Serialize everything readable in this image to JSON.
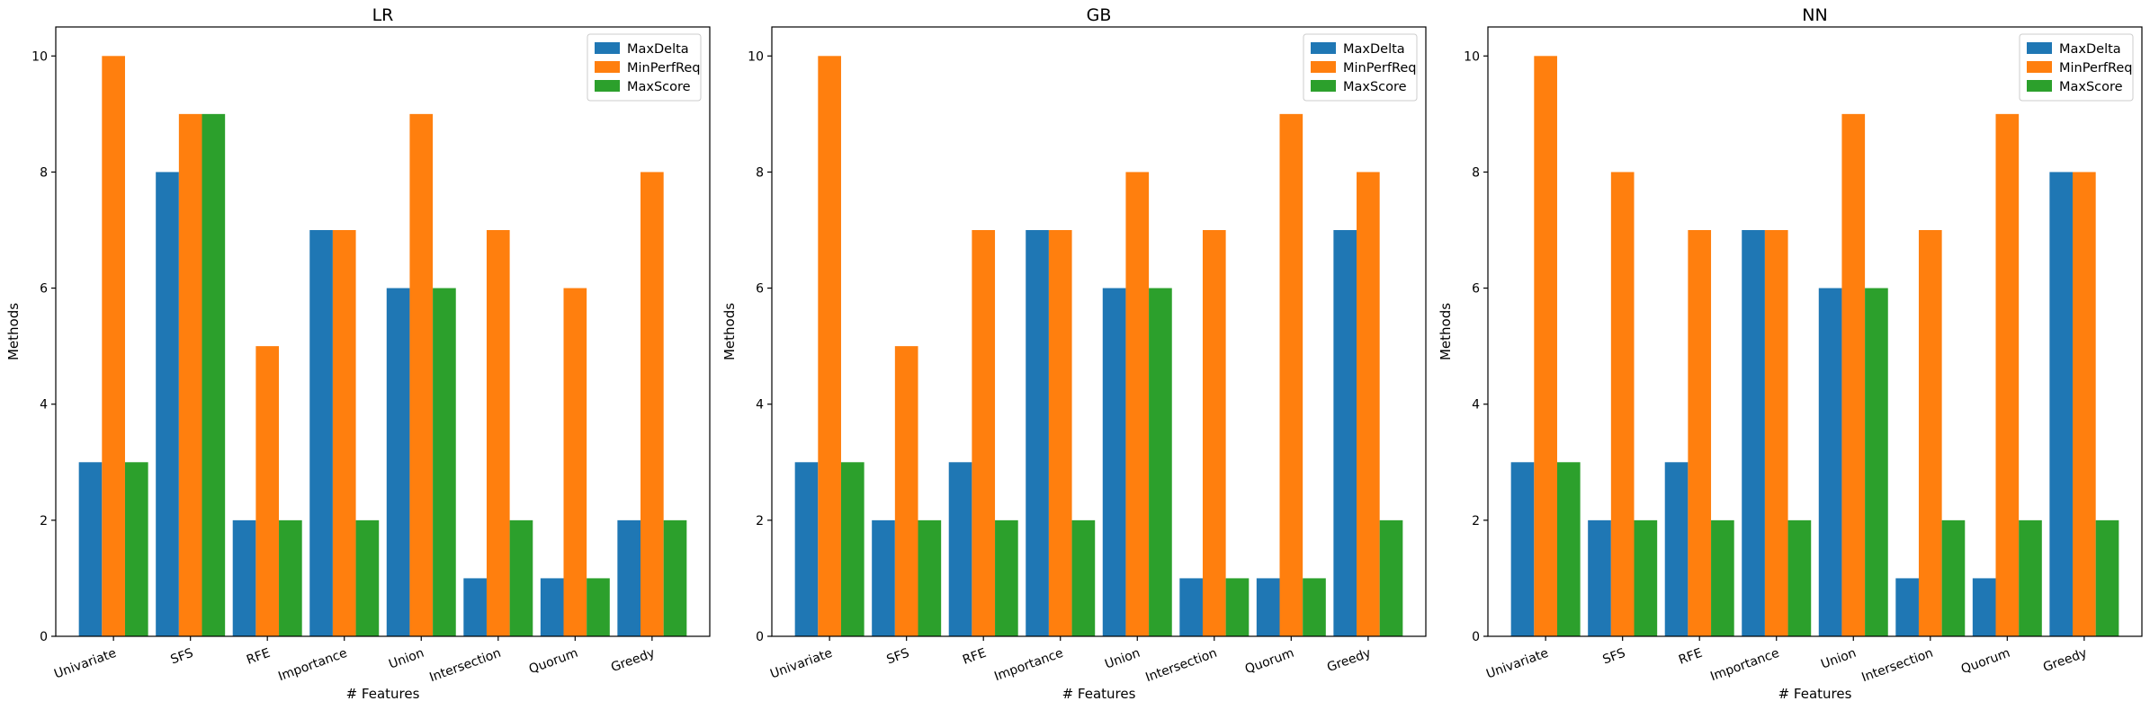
{
  "chart_data": [
    {
      "type": "bar",
      "title": "LR",
      "xlabel": "# Features",
      "ylabel": "Methods",
      "categories": [
        "Univariate",
        "SFS",
        "RFE",
        "Importance",
        "Union",
        "Intersection",
        "Quorum",
        "Greedy"
      ],
      "series": [
        {
          "name": "MaxDelta",
          "values": [
            3,
            8,
            2,
            7,
            6,
            1,
            1,
            2
          ]
        },
        {
          "name": "MinPerfReq",
          "values": [
            10,
            9,
            5,
            7,
            9,
            7,
            6,
            8
          ]
        },
        {
          "name": "MaxScore",
          "values": [
            3,
            9,
            2,
            2,
            6,
            2,
            1,
            2
          ]
        }
      ],
      "ylim": [
        0,
        10.5
      ],
      "yticks": [
        0,
        2,
        4,
        6,
        8,
        10
      ],
      "legend": "top-right",
      "grid": false
    },
    {
      "type": "bar",
      "title": "GB",
      "xlabel": "# Features",
      "ylabel": "Methods",
      "categories": [
        "Univariate",
        "SFS",
        "RFE",
        "Importance",
        "Union",
        "Intersection",
        "Quorum",
        "Greedy"
      ],
      "series": [
        {
          "name": "MaxDelta",
          "values": [
            3,
            2,
            3,
            7,
            6,
            1,
            1,
            7
          ]
        },
        {
          "name": "MinPerfReq",
          "values": [
            10,
            5,
            7,
            7,
            8,
            7,
            9,
            8
          ]
        },
        {
          "name": "MaxScore",
          "values": [
            3,
            2,
            2,
            2,
            6,
            1,
            1,
            2
          ]
        }
      ],
      "ylim": [
        0,
        10.5
      ],
      "yticks": [
        0,
        2,
        4,
        6,
        8,
        10
      ],
      "legend": "top-right",
      "grid": false
    },
    {
      "type": "bar",
      "title": "NN",
      "xlabel": "# Features",
      "ylabel": "Methods",
      "categories": [
        "Univariate",
        "SFS",
        "RFE",
        "Importance",
        "Union",
        "Intersection",
        "Quorum",
        "Greedy"
      ],
      "series": [
        {
          "name": "MaxDelta",
          "values": [
            3,
            2,
            3,
            7,
            6,
            1,
            1,
            8
          ]
        },
        {
          "name": "MinPerfReq",
          "values": [
            10,
            8,
            7,
            7,
            9,
            7,
            9,
            8
          ]
        },
        {
          "name": "MaxScore",
          "values": [
            3,
            2,
            2,
            2,
            6,
            2,
            2,
            2
          ]
        }
      ],
      "ylim": [
        0,
        10.5
      ],
      "yticks": [
        0,
        2,
        4,
        6,
        8,
        10
      ],
      "legend": "top-right",
      "grid": false
    }
  ],
  "colors": {
    "MaxDelta": "#1f77b4",
    "MinPerfReq": "#ff7f0e",
    "MaxScore": "#2ca02c"
  }
}
